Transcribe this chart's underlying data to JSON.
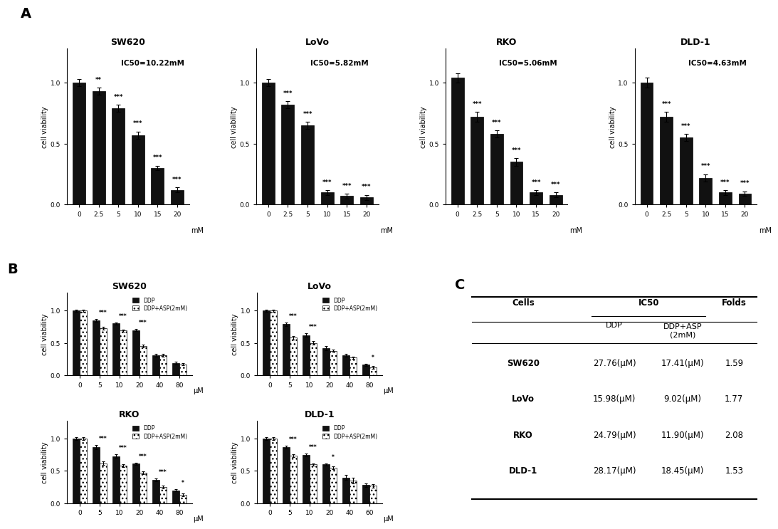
{
  "panel_A": {
    "cells": [
      "SW620",
      "LoVo",
      "RKO",
      "DLD-1"
    ],
    "x_labels": [
      "0",
      "2.5",
      "5",
      "10",
      "15",
      "20"
    ],
    "x_unit": "mM",
    "ic50": [
      "IC50=10.22mM",
      "IC50=5.82mM",
      "IC50=5.06mM",
      "IC50=4.63mM"
    ],
    "values": {
      "SW620": [
        1.0,
        0.93,
        0.79,
        0.57,
        0.3,
        0.12
      ],
      "LoVo": [
        1.0,
        0.82,
        0.65,
        0.1,
        0.07,
        0.06
      ],
      "RKO": [
        1.04,
        0.72,
        0.58,
        0.35,
        0.1,
        0.08
      ],
      "DLD-1": [
        1.0,
        0.72,
        0.55,
        0.22,
        0.1,
        0.09
      ]
    },
    "errors": {
      "SW620": [
        0.03,
        0.03,
        0.03,
        0.03,
        0.02,
        0.02
      ],
      "LoVo": [
        0.03,
        0.03,
        0.03,
        0.02,
        0.02,
        0.02
      ],
      "RKO": [
        0.04,
        0.04,
        0.03,
        0.03,
        0.02,
        0.02
      ],
      "DLD-1": [
        0.04,
        0.04,
        0.03,
        0.03,
        0.02,
        0.02
      ]
    },
    "sig": {
      "SW620": [
        "",
        "**",
        "***",
        "***",
        "***",
        "***"
      ],
      "LoVo": [
        "",
        "***",
        "***",
        "***",
        "***",
        "***"
      ],
      "RKO": [
        "",
        "***",
        "***",
        "***",
        "***",
        "***"
      ],
      "DLD-1": [
        "",
        "***",
        "***",
        "***",
        "***",
        "***"
      ]
    }
  },
  "panel_B": {
    "cells": [
      "SW620",
      "LoVo",
      "RKO",
      "DLD-1"
    ],
    "x_labels": {
      "SW620": [
        "0",
        "5",
        "10",
        "20",
        "40",
        "80"
      ],
      "LoVo": [
        "0",
        "5",
        "10",
        "20",
        "40",
        "80"
      ],
      "RKO": [
        "0",
        "5",
        "10",
        "20",
        "40",
        "80"
      ],
      "DLD-1": [
        "0",
        "5",
        "10",
        "20",
        "40",
        "60"
      ]
    },
    "x_unit": "μM",
    "values_ddp": {
      "SW620": [
        1.0,
        0.85,
        0.8,
        0.7,
        0.31,
        0.19
      ],
      "LoVo": [
        1.0,
        0.79,
        0.62,
        0.42,
        0.31,
        0.16
      ],
      "RKO": [
        1.0,
        0.87,
        0.73,
        0.61,
        0.36,
        0.2
      ],
      "DLD-1": [
        1.0,
        0.87,
        0.75,
        0.6,
        0.4,
        0.28
      ]
    },
    "values_ddp_asp": {
      "SW620": [
        1.0,
        0.73,
        0.69,
        0.45,
        0.31,
        0.17
      ],
      "LoVo": [
        1.0,
        0.58,
        0.5,
        0.38,
        0.27,
        0.12
      ],
      "RKO": [
        1.0,
        0.62,
        0.58,
        0.47,
        0.25,
        0.13
      ],
      "DLD-1": [
        1.0,
        0.74,
        0.6,
        0.55,
        0.35,
        0.27
      ]
    },
    "errors_ddp": {
      "SW620": [
        0.02,
        0.02,
        0.02,
        0.02,
        0.02,
        0.02
      ],
      "LoVo": [
        0.02,
        0.03,
        0.03,
        0.03,
        0.02,
        0.02
      ],
      "RKO": [
        0.02,
        0.03,
        0.03,
        0.02,
        0.02,
        0.02
      ],
      "DLD-1": [
        0.02,
        0.02,
        0.02,
        0.02,
        0.04,
        0.03
      ]
    },
    "errors_ddp_asp": {
      "SW620": [
        0.02,
        0.02,
        0.02,
        0.02,
        0.02,
        0.02
      ],
      "LoVo": [
        0.02,
        0.03,
        0.03,
        0.02,
        0.02,
        0.02
      ],
      "RKO": [
        0.02,
        0.03,
        0.02,
        0.02,
        0.02,
        0.02
      ],
      "DLD-1": [
        0.02,
        0.02,
        0.02,
        0.02,
        0.04,
        0.03
      ]
    },
    "sig": {
      "SW620": [
        "",
        "***",
        "***",
        "***",
        "",
        ""
      ],
      "LoVo": [
        "",
        "***",
        "***",
        "",
        "",
        "*"
      ],
      "RKO": [
        "",
        "***",
        "***",
        "***",
        "***",
        "*"
      ],
      "DLD-1": [
        "",
        "***",
        "***",
        "*",
        "",
        ""
      ]
    }
  },
  "panel_C": {
    "cells": [
      "SW620",
      "LoVo",
      "RKO",
      "DLD-1"
    ],
    "ddp": [
      "27.76(μM)",
      "15.98(μM)",
      "24.79(μM)",
      "28.17(μM)"
    ],
    "ddp_asp": [
      "17.41(μM)",
      "9.02(μM)",
      "11.90(μM)",
      "18.45(μM)"
    ],
    "folds": [
      "1.59",
      "1.77",
      "2.08",
      "1.53"
    ]
  },
  "bar_color": "#111111",
  "background": "#ffffff"
}
